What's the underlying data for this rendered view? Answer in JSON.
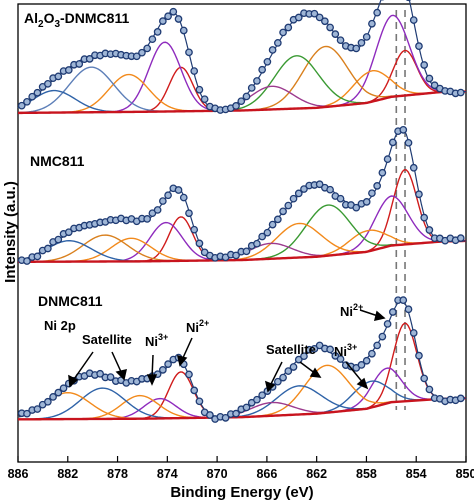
{
  "chart_data": {
    "type": "line",
    "title": "",
    "xlabel": "Binding Energy (eV)",
    "ylabel": "Intensity (a.u.)",
    "xlim": [
      886,
      850
    ],
    "x_reversed": true,
    "y_ticks_shown": false,
    "x_ticks": [
      886,
      882,
      878,
      874,
      870,
      866,
      862,
      858,
      854,
      850
    ],
    "grid": false,
    "legend": "none",
    "panels": [
      {
        "label": "Al2O3-DNMC811",
        "label_main": "Al",
        "label_sub1": "2",
        "label_mid": "O",
        "label_sub2": "3",
        "label_tail": "-DNMC811",
        "baseline": [
          [
            886,
            0.05
          ],
          [
            876,
            0.1
          ],
          [
            868,
            0.16
          ],
          [
            862,
            0.28
          ],
          [
            858,
            0.5
          ],
          [
            856,
            0.78
          ],
          [
            852,
            1.0
          ],
          [
            850,
            1.02
          ]
        ],
        "peaks": [
          {
            "center": 854.9,
            "height": 2.05,
            "width": 0.95,
            "color": "#d01c1c"
          },
          {
            "center": 855.9,
            "height": 3.7,
            "width": 1.35,
            "color": "#8e2bbd"
          },
          {
            "center": 857.6,
            "height": 1.4,
            "width": 1.45,
            "color": "#f28a1c"
          },
          {
            "center": 861.3,
            "height": 2.75,
            "width": 1.8,
            "color": "#d9801e"
          },
          {
            "center": 863.6,
            "height": 2.4,
            "width": 1.8,
            "color": "#3a9a33"
          },
          {
            "center": 865.6,
            "height": 1.05,
            "width": 1.7,
            "color": "#9c3b8e"
          },
          {
            "center": 872.9,
            "height": 2.0,
            "width": 0.95,
            "color": "#d01c1c"
          },
          {
            "center": 874.2,
            "height": 3.15,
            "width": 1.3,
            "color": "#8e2bbd"
          },
          {
            "center": 877.1,
            "height": 1.7,
            "width": 1.6,
            "color": "#f28a1c"
          },
          {
            "center": 880.1,
            "height": 2.05,
            "width": 1.8,
            "color": "#5d7fb8"
          },
          {
            "center": 883.1,
            "height": 1.0,
            "width": 1.7,
            "color": "#2f63a8"
          }
        ]
      },
      {
        "label": "NMC811",
        "baseline": [
          [
            886,
            0.1
          ],
          [
            876,
            0.12
          ],
          [
            868,
            0.18
          ],
          [
            862,
            0.33
          ],
          [
            858,
            0.55
          ],
          [
            856,
            0.84
          ],
          [
            852,
            1.02
          ],
          [
            850,
            1.05
          ]
        ],
        "peaks": [
          {
            "center": 854.9,
            "height": 3.4,
            "width": 0.95,
            "color": "#d01c1c"
          },
          {
            "center": 856.0,
            "height": 2.25,
            "width": 1.35,
            "color": "#8e2bbd"
          },
          {
            "center": 857.9,
            "height": 0.95,
            "width": 1.45,
            "color": "#f28a1c"
          },
          {
            "center": 861.1,
            "height": 2.3,
            "width": 1.8,
            "color": "#3a9a33"
          },
          {
            "center": 863.4,
            "height": 1.55,
            "width": 1.8,
            "color": "#f28a1c"
          },
          {
            "center": 865.7,
            "height": 0.7,
            "width": 1.7,
            "color": "#9c3b8e"
          },
          {
            "center": 872.9,
            "height": 2.0,
            "width": 0.95,
            "color": "#d01c1c"
          },
          {
            "center": 874.1,
            "height": 1.75,
            "width": 1.3,
            "color": "#8e2bbd"
          },
          {
            "center": 876.9,
            "height": 1.05,
            "width": 1.6,
            "color": "#f28a1c"
          },
          {
            "center": 879.0,
            "height": 1.2,
            "width": 1.8,
            "color": "#d9801e"
          },
          {
            "center": 881.9,
            "height": 0.95,
            "width": 1.8,
            "color": "#2f63a8"
          }
        ]
      },
      {
        "label": "DNMC811",
        "baseline": [
          [
            886,
            0.12
          ],
          [
            876,
            0.15
          ],
          [
            868,
            0.22
          ],
          [
            862,
            0.38
          ],
          [
            858,
            0.6
          ],
          [
            856,
            0.9
          ],
          [
            852,
            1.05
          ],
          [
            850,
            1.08
          ]
        ],
        "peaks": [
          {
            "center": 854.9,
            "height": 3.55,
            "width": 0.95,
            "color": "#d01c1c"
          },
          {
            "center": 856.4,
            "height": 1.6,
            "width": 1.2,
            "color": "#8e2bbd"
          },
          {
            "center": 857.7,
            "height": 1.2,
            "width": 1.4,
            "color": "#2f63a8"
          },
          {
            "center": 861.2,
            "height": 2.15,
            "width": 1.75,
            "color": "#f28a1c"
          },
          {
            "center": 863.4,
            "height": 1.3,
            "width": 1.8,
            "color": "#2f63a8"
          },
          {
            "center": 865.6,
            "height": 0.6,
            "width": 1.7,
            "color": "#9c3b8e"
          },
          {
            "center": 872.9,
            "height": 2.1,
            "width": 1.0,
            "color": "#d01c1c"
          },
          {
            "center": 874.6,
            "height": 0.9,
            "width": 1.3,
            "color": "#8e2bbd"
          },
          {
            "center": 876.2,
            "height": 1.05,
            "width": 1.5,
            "color": "#f28a1c"
          },
          {
            "center": 879.2,
            "height": 1.4,
            "width": 1.8,
            "color": "#2f63a8"
          },
          {
            "center": 882.0,
            "height": 1.2,
            "width": 1.8,
            "color": "#f28a1c"
          }
        ]
      }
    ],
    "reference_lines_x": [
      855.6,
      854.9
    ],
    "annotations": {
      "ni2p": "Ni 2p",
      "satellite_left": "Satellite",
      "ni3_left_base": "Ni",
      "ni3_left_sup": "3+",
      "ni2_left_base": "Ni",
      "ni2_left_sup": "2+",
      "satellite_right": "Satellite",
      "ni3_right_base": "Ni",
      "ni3_right_sup": "3+",
      "ni2_right_base": "Ni",
      "ni2_right_sup": "2+"
    },
    "colors": {
      "marker_fill": "#9fb6d6",
      "marker_stroke": "#1f3b73",
      "envelope": "#1f3b73",
      "baseline": "#c8141e"
    }
  }
}
